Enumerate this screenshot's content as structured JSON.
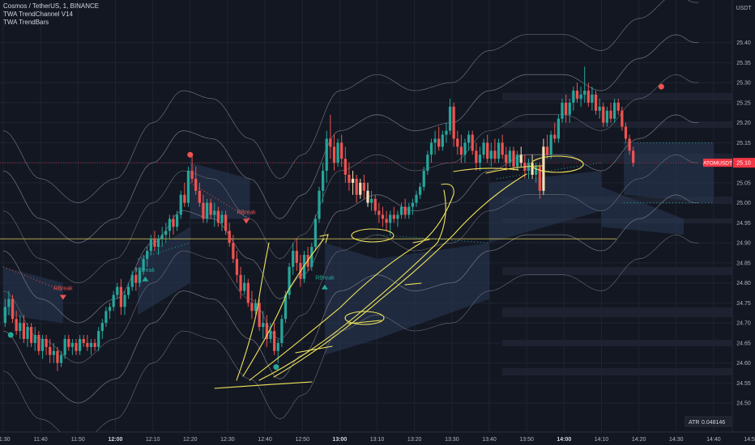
{
  "header": {
    "symbol_line": "Cosmos / TetherUS, 1, BINANCE",
    "indicator_1": "TWA TrendChannel V14",
    "indicator_2": "TWA TrendBars"
  },
  "price_tag": {
    "symbol": "ATOMUSDT",
    "value": "25.10",
    "color": "#f23645"
  },
  "atr": {
    "label": "ATR",
    "value": "0.048146"
  },
  "colors": {
    "up": "#26a69a",
    "down": "#ef5350",
    "neutral": "#f5deb3",
    "channel": "#787b86",
    "annot": "#f2e55b",
    "fill": "#2a3a55"
  },
  "chart_data": {
    "type": "candlestick",
    "currency_label": "USDT",
    "y_ticks": [
      "25.40",
      "25.35",
      "25.30",
      "25.25",
      "25.20",
      "25.15",
      "25.10",
      "25.05",
      "25.00",
      "24.95",
      "24.90",
      "24.85",
      "24.80",
      "24.75",
      "24.70",
      "24.65",
      "24.60",
      "24.55",
      "24.50"
    ],
    "ylim": [
      24.47,
      25.47
    ],
    "x_ticks": [
      "11:30",
      "11:40",
      "11:50",
      "12:00",
      "12:10",
      "12:20",
      "12:30",
      "12:40",
      "12:50",
      "13:00",
      "13:10",
      "13:20",
      "13:30",
      "13:40",
      "13:50",
      "14:00",
      "14:10",
      "14:20",
      "14:30",
      "14:40",
      "14:50"
    ],
    "bold_x_ticks": [
      "12:00",
      "13:00",
      "14:00"
    ],
    "x_minutes": [
      0,
      195
    ],
    "labels": [
      {
        "text": "RBreak",
        "t": 16,
        "y": 24.77,
        "kind": "sell"
      },
      {
        "text": "RBreak",
        "t": 65,
        "y": 24.96,
        "kind": "sell"
      },
      {
        "text": "RBreak",
        "t": 38,
        "y": 24.82,
        "kind": "buy"
      },
      {
        "text": "RBreak",
        "t": 86,
        "y": 24.8,
        "kind": "buy"
      }
    ],
    "dots": [
      {
        "t": 50,
        "y": 25.12,
        "kind": "red"
      },
      {
        "t": 176,
        "y": 25.29,
        "kind": "red"
      },
      {
        "t": 2,
        "y": 24.67,
        "kind": "green"
      },
      {
        "t": 73,
        "y": 24.59,
        "kind": "green"
      }
    ],
    "candles": [
      [
        24.7,
        24.76,
        24.69,
        24.74
      ],
      [
        24.74,
        24.78,
        24.72,
        24.76
      ],
      [
        24.76,
        24.77,
        24.7,
        24.71
      ],
      [
        24.71,
        24.73,
        24.67,
        24.68
      ],
      [
        24.68,
        24.72,
        24.66,
        24.7
      ],
      [
        24.7,
        24.72,
        24.65,
        24.66
      ],
      [
        24.66,
        24.7,
        24.64,
        24.69
      ],
      [
        24.69,
        24.7,
        24.64,
        24.65
      ],
      [
        24.65,
        24.69,
        24.63,
        24.67
      ],
      [
        24.67,
        24.68,
        24.62,
        24.63
      ],
      [
        24.63,
        24.67,
        24.61,
        24.66
      ],
      [
        24.66,
        24.67,
        24.62,
        24.64
      ],
      [
        24.64,
        24.66,
        24.6,
        24.62
      ],
      [
        24.62,
        24.65,
        24.6,
        24.63
      ],
      [
        24.63,
        24.64,
        24.58,
        24.6
      ],
      [
        24.6,
        24.63,
        24.59,
        24.62
      ],
      [
        24.62,
        24.67,
        24.61,
        24.66
      ],
      [
        24.66,
        24.67,
        24.63,
        24.64
      ],
      [
        24.64,
        24.66,
        24.62,
        24.65
      ],
      [
        24.65,
        24.66,
        24.62,
        24.63
      ],
      [
        24.63,
        24.67,
        24.62,
        24.66
      ],
      [
        24.66,
        24.67,
        24.64,
        24.65
      ],
      [
        24.65,
        24.67,
        24.63,
        24.64
      ],
      [
        24.64,
        24.66,
        24.62,
        24.65
      ],
      [
        24.65,
        24.66,
        24.63,
        24.64
      ],
      [
        24.64,
        24.69,
        24.63,
        24.68
      ],
      [
        24.68,
        24.71,
        24.66,
        24.7
      ],
      [
        24.7,
        24.74,
        24.69,
        24.73
      ],
      [
        24.73,
        24.75,
        24.71,
        24.74
      ],
      [
        24.74,
        24.78,
        24.73,
        24.77
      ],
      [
        24.77,
        24.8,
        24.76,
        24.79
      ],
      [
        24.79,
        24.81,
        24.72,
        24.74
      ],
      [
        24.74,
        24.78,
        24.72,
        24.77
      ],
      [
        24.77,
        24.8,
        24.76,
        24.79
      ],
      [
        24.79,
        24.83,
        24.78,
        24.82
      ],
      [
        24.82,
        24.84,
        24.78,
        24.8
      ],
      [
        24.8,
        24.84,
        24.79,
        24.83
      ],
      [
        24.83,
        24.87,
        24.82,
        24.86
      ],
      [
        24.86,
        24.89,
        24.84,
        24.88
      ],
      [
        24.88,
        24.92,
        24.87,
        24.91
      ],
      [
        24.91,
        24.93,
        24.88,
        24.89
      ],
      [
        24.89,
        24.92,
        24.87,
        24.91
      ],
      [
        24.91,
        24.94,
        24.89,
        24.92
      ],
      [
        24.92,
        24.95,
        24.9,
        24.93
      ],
      [
        24.93,
        24.97,
        24.91,
        24.96
      ],
      [
        24.96,
        24.97,
        24.92,
        24.94
      ],
      [
        24.94,
        24.98,
        24.93,
        24.97
      ],
      [
        24.97,
        25.03,
        24.96,
        25.02
      ],
      [
        25.02,
        25.05,
        24.99,
        25.0
      ],
      [
        25.0,
        25.09,
        24.99,
        25.08
      ],
      [
        25.08,
        25.12,
        25.05,
        25.06
      ],
      [
        25.06,
        25.09,
        25.02,
        25.03
      ],
      [
        25.03,
        25.05,
        24.99,
        25.0
      ],
      [
        25.0,
        25.02,
        24.95,
        24.96
      ],
      [
        24.96,
        25.01,
        24.95,
        25.0
      ],
      [
        25.0,
        25.01,
        24.96,
        24.97
      ],
      [
        24.97,
        25.0,
        24.94,
        24.98
      ],
      [
        24.98,
        24.99,
        24.94,
        24.95
      ],
      [
        24.95,
        24.98,
        24.93,
        24.97
      ],
      [
        24.97,
        24.98,
        24.92,
        24.93
      ],
      [
        24.93,
        24.95,
        24.89,
        24.9
      ],
      [
        24.9,
        24.92,
        24.85,
        24.86
      ],
      [
        24.86,
        24.88,
        24.8,
        24.82
      ],
      [
        24.82,
        24.84,
        24.76,
        24.78
      ],
      [
        24.78,
        24.82,
        24.77,
        24.8
      ],
      [
        24.8,
        24.81,
        24.74,
        24.75
      ],
      [
        24.75,
        24.78,
        24.71,
        24.73
      ],
      [
        24.73,
        24.76,
        24.72,
        24.75
      ],
      [
        24.75,
        24.76,
        24.68,
        24.69
      ],
      [
        24.69,
        24.73,
        24.66,
        24.7
      ],
      [
        24.7,
        24.72,
        24.64,
        24.66
      ],
      [
        24.66,
        24.7,
        24.65,
        24.68
      ],
      [
        24.68,
        24.7,
        24.62,
        24.63
      ],
      [
        24.63,
        24.66,
        24.6,
        24.65
      ],
      [
        24.65,
        24.72,
        24.64,
        24.71
      ],
      [
        24.71,
        24.78,
        24.7,
        24.77
      ],
      [
        24.77,
        24.85,
        24.76,
        24.84
      ],
      [
        24.84,
        24.9,
        24.82,
        24.88
      ],
      [
        24.88,
        24.91,
        24.83,
        24.85
      ],
      [
        24.85,
        24.87,
        24.79,
        24.81
      ],
      [
        24.81,
        24.88,
        24.8,
        24.87
      ],
      [
        24.87,
        24.89,
        24.83,
        24.84
      ],
      [
        24.84,
        24.9,
        24.83,
        24.89
      ],
      [
        24.89,
        24.97,
        24.88,
        24.96
      ],
      [
        24.96,
        25.04,
        24.95,
        25.03
      ],
      [
        25.03,
        25.1,
        25.0,
        25.08
      ],
      [
        25.08,
        25.18,
        25.05,
        25.16
      ],
      [
        25.16,
        25.22,
        25.11,
        25.14
      ],
      [
        25.14,
        25.17,
        25.08,
        25.1
      ],
      [
        25.1,
        25.16,
        25.09,
        25.15
      ],
      [
        25.15,
        25.17,
        25.09,
        25.11
      ],
      [
        25.11,
        25.14,
        25.05,
        25.07
      ],
      [
        25.07,
        25.1,
        25.03,
        25.05
      ],
      [
        25.05,
        25.08,
        25.02,
        25.06
      ],
      [
        25.06,
        25.07,
        25.0,
        25.02
      ],
      [
        25.02,
        25.06,
        25.01,
        25.05
      ],
      [
        25.05,
        25.07,
        25.01,
        25.03
      ],
      [
        25.03,
        25.05,
        24.99,
        25.0
      ],
      [
        25.0,
        25.03,
        24.98,
        25.01
      ],
      [
        25.01,
        25.02,
        24.97,
        24.98
      ],
      [
        24.98,
        25.0,
        24.95,
        24.97
      ],
      [
        24.97,
        24.99,
        24.94,
        24.96
      ],
      [
        24.96,
        24.98,
        24.93,
        24.95
      ],
      [
        24.95,
        24.98,
        24.92,
        24.97
      ],
      [
        24.97,
        24.99,
        24.95,
        24.96
      ],
      [
        24.96,
        24.98,
        24.94,
        24.97
      ],
      [
        24.97,
        25.0,
        24.96,
        24.99
      ],
      [
        24.99,
        25.01,
        24.96,
        24.97
      ],
      [
        24.97,
        25.0,
        24.96,
        24.99
      ],
      [
        24.99,
        25.01,
        24.97,
        25.0
      ],
      [
        25.0,
        25.03,
        24.99,
        25.02
      ],
      [
        25.02,
        25.05,
        25.01,
        25.04
      ],
      [
        25.04,
        25.09,
        25.03,
        25.08
      ],
      [
        25.08,
        25.13,
        25.07,
        25.12
      ],
      [
        25.12,
        25.16,
        25.1,
        25.15
      ],
      [
        25.15,
        25.18,
        25.12,
        25.16
      ],
      [
        25.16,
        25.19,
        25.13,
        25.14
      ],
      [
        25.14,
        25.18,
        25.13,
        25.17
      ],
      [
        25.17,
        25.2,
        25.15,
        25.18
      ],
      [
        25.18,
        25.26,
        25.17,
        25.24
      ],
      [
        25.24,
        25.25,
        25.14,
        25.16
      ],
      [
        25.16,
        25.18,
        25.12,
        25.14
      ],
      [
        25.14,
        25.17,
        25.1,
        25.12
      ],
      [
        25.12,
        25.16,
        25.1,
        25.15
      ],
      [
        25.15,
        25.18,
        25.13,
        25.17
      ],
      [
        25.17,
        25.18,
        25.12,
        25.13
      ],
      [
        25.13,
        25.15,
        25.08,
        25.1
      ],
      [
        25.1,
        25.14,
        25.08,
        25.12
      ],
      [
        25.12,
        25.16,
        25.11,
        25.15
      ],
      [
        25.15,
        25.17,
        25.1,
        25.11
      ],
      [
        25.11,
        25.15,
        25.09,
        25.13
      ],
      [
        25.13,
        25.16,
        25.1,
        25.11
      ],
      [
        25.11,
        25.16,
        25.1,
        25.15
      ],
      [
        25.15,
        25.17,
        25.11,
        25.12
      ],
      [
        25.12,
        25.14,
        25.08,
        25.1
      ],
      [
        25.1,
        25.14,
        25.09,
        25.13
      ],
      [
        25.13,
        25.14,
        25.08,
        25.09
      ],
      [
        25.09,
        25.13,
        25.08,
        25.12
      ],
      [
        25.12,
        25.14,
        25.09,
        25.1
      ],
      [
        25.1,
        25.12,
        25.06,
        25.08
      ],
      [
        25.08,
        25.11,
        25.06,
        25.1
      ],
      [
        25.1,
        25.12,
        25.06,
        25.07
      ],
      [
        25.07,
        25.1,
        25.05,
        25.09
      ],
      [
        25.09,
        25.1,
        25.01,
        25.03
      ],
      [
        25.03,
        25.16,
        25.02,
        25.14
      ],
      [
        25.14,
        25.17,
        25.11,
        25.12
      ],
      [
        25.12,
        25.18,
        25.11,
        25.17
      ],
      [
        25.17,
        25.2,
        25.15,
        25.16
      ],
      [
        25.16,
        25.22,
        25.15,
        25.21
      ],
      [
        25.21,
        25.26,
        25.2,
        25.25
      ],
      [
        25.25,
        25.27,
        25.2,
        25.22
      ],
      [
        25.22,
        25.26,
        25.2,
        25.25
      ],
      [
        25.25,
        25.29,
        25.23,
        25.28
      ],
      [
        25.28,
        25.3,
        25.25,
        25.26
      ],
      [
        25.26,
        25.29,
        25.24,
        25.27
      ],
      [
        25.27,
        25.34,
        25.25,
        25.28
      ],
      [
        25.28,
        25.3,
        25.24,
        25.25
      ],
      [
        25.25,
        25.29,
        25.23,
        25.27
      ],
      [
        25.27,
        25.28,
        25.22,
        25.23
      ],
      [
        25.23,
        25.26,
        25.21,
        25.24
      ],
      [
        25.24,
        25.25,
        25.19,
        25.2
      ],
      [
        25.2,
        25.24,
        25.19,
        25.23
      ],
      [
        25.23,
        25.25,
        25.2,
        25.21
      ],
      [
        25.21,
        25.26,
        25.2,
        25.25
      ],
      [
        25.25,
        25.26,
        25.22,
        25.23
      ],
      [
        25.23,
        25.24,
        25.18,
        25.19
      ],
      [
        25.19,
        25.2,
        25.15,
        25.16
      ],
      [
        25.16,
        25.17,
        25.12,
        25.13
      ],
      [
        25.13,
        25.14,
        25.09,
        25.1
      ]
    ],
    "yellow_hline": 24.91
  }
}
